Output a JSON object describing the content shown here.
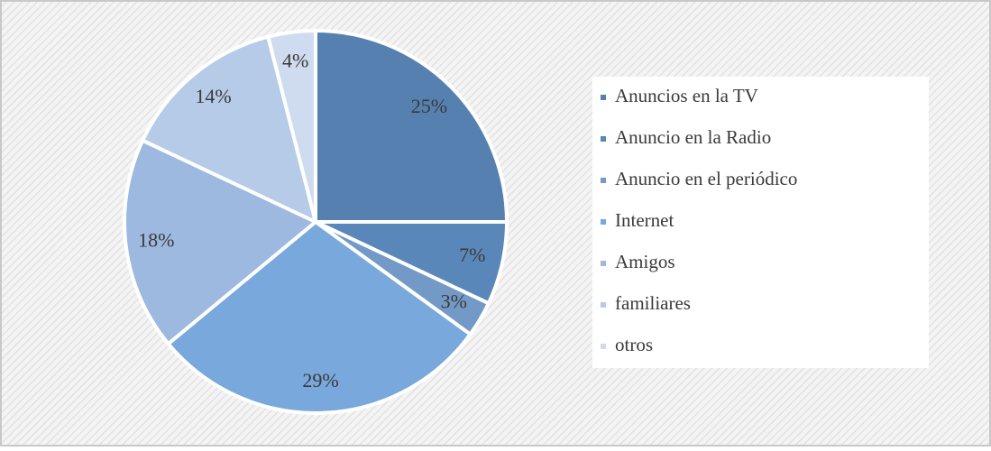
{
  "chart_data": {
    "type": "pie",
    "categories": [
      "Anuncios en la TV",
      "Anuncio en la Radio",
      "Anuncio en el periódico",
      "Internet",
      "Amigos",
      "familiares",
      "otros"
    ],
    "values": [
      25,
      7,
      3,
      29,
      18,
      14,
      4
    ],
    "value_labels": [
      "25%",
      "7%",
      "3%",
      "29%",
      "18%",
      "14%",
      "4%"
    ],
    "colors": [
      "#5680b0",
      "#5a87ba",
      "#7399c6",
      "#78a8dc",
      "#9db9e0",
      "#b5cbe8",
      "#cfdcf0"
    ],
    "legend": "right"
  }
}
